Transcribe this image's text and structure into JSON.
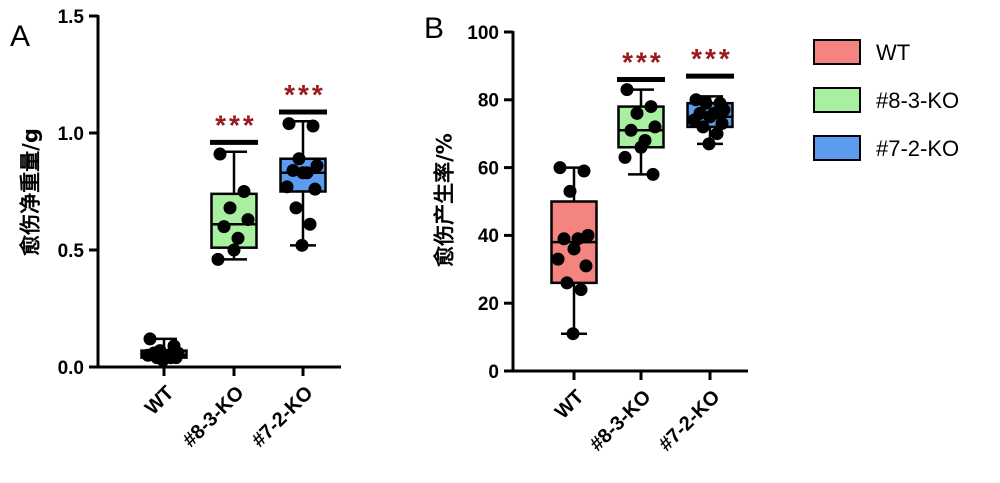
{
  "chart_data": [
    {
      "type": "box",
      "panel_label": "A",
      "ylabel": "愈伤净重量/g",
      "ylim": [
        0,
        1.5
      ],
      "yticks": [
        0.0,
        0.5,
        1.0,
        1.5
      ],
      "ytick_labels": [
        "0.0",
        "0.5",
        "1.0",
        "1.5"
      ],
      "categories": [
        "WT",
        "#8-3-KO",
        "#7-2-KO"
      ],
      "groups": [
        {
          "name": "WT",
          "color": "#f4847f",
          "min": 0.03,
          "q1": 0.04,
          "median": 0.05,
          "q3": 0.07,
          "max": 0.12,
          "points": [
            0.12,
            0.09,
            0.07,
            0.06,
            0.06,
            0.05,
            0.05,
            0.05,
            0.04,
            0.04,
            0.04,
            0.03
          ],
          "significance": ""
        },
        {
          "name": "#8-3-KO",
          "color": "#a8f0a0",
          "min": 0.46,
          "q1": 0.51,
          "median": 0.61,
          "q3": 0.74,
          "max": 0.92,
          "points": [
            0.91,
            0.75,
            0.68,
            0.63,
            0.6,
            0.55,
            0.5,
            0.46
          ],
          "significance": "***",
          "sig_bar": 0.96
        },
        {
          "name": "#7-2-KO",
          "color": "#5b9cf0",
          "min": 0.52,
          "q1": 0.75,
          "median": 0.83,
          "q3": 0.89,
          "max": 1.05,
          "points": [
            1.04,
            1.03,
            0.89,
            0.86,
            0.84,
            0.83,
            0.83,
            0.77,
            0.76,
            0.68,
            0.61,
            0.52
          ],
          "significance": "***",
          "sig_bar": 1.09
        }
      ]
    },
    {
      "type": "box",
      "panel_label": "B",
      "ylabel": "愈伤产生率/%",
      "ylim": [
        0,
        100
      ],
      "yticks": [
        0,
        20,
        40,
        60,
        80,
        100
      ],
      "ytick_labels": [
        "0",
        "20",
        "40",
        "60",
        "80",
        "100"
      ],
      "categories": [
        "WT",
        "#8-3-KO",
        "#7-2-KO"
      ],
      "groups": [
        {
          "name": "WT",
          "color": "#f4847f",
          "min": 11,
          "q1": 26,
          "median": 38,
          "q3": 50,
          "max": 60,
          "points": [
            60,
            59,
            53,
            40,
            39,
            39,
            36,
            33,
            31,
            26,
            24,
            11
          ],
          "significance": ""
        },
        {
          "name": "#8-3-KO",
          "color": "#a8f0a0",
          "min": 58,
          "q1": 66,
          "median": 71,
          "q3": 78,
          "max": 83,
          "points": [
            83,
            78,
            76,
            72,
            71,
            68,
            66,
            63,
            58
          ],
          "significance": "***",
          "sig_bar": 86
        },
        {
          "name": "#7-2-KO",
          "color": "#5b9cf0",
          "min": 67,
          "q1": 72,
          "median": 75,
          "q3": 79,
          "max": 81,
          "points": [
            80,
            79,
            79,
            77,
            76,
            76,
            75,
            74,
            73,
            72,
            70,
            67
          ],
          "significance": "***",
          "sig_bar": 87
        }
      ]
    }
  ],
  "legend": [
    {
      "label": "WT",
      "color": "#f4847f"
    },
    {
      "label": "#8-3-KO",
      "color": "#a8f0a0"
    },
    {
      "label": "#7-2-KO",
      "color": "#5b9cf0"
    }
  ]
}
